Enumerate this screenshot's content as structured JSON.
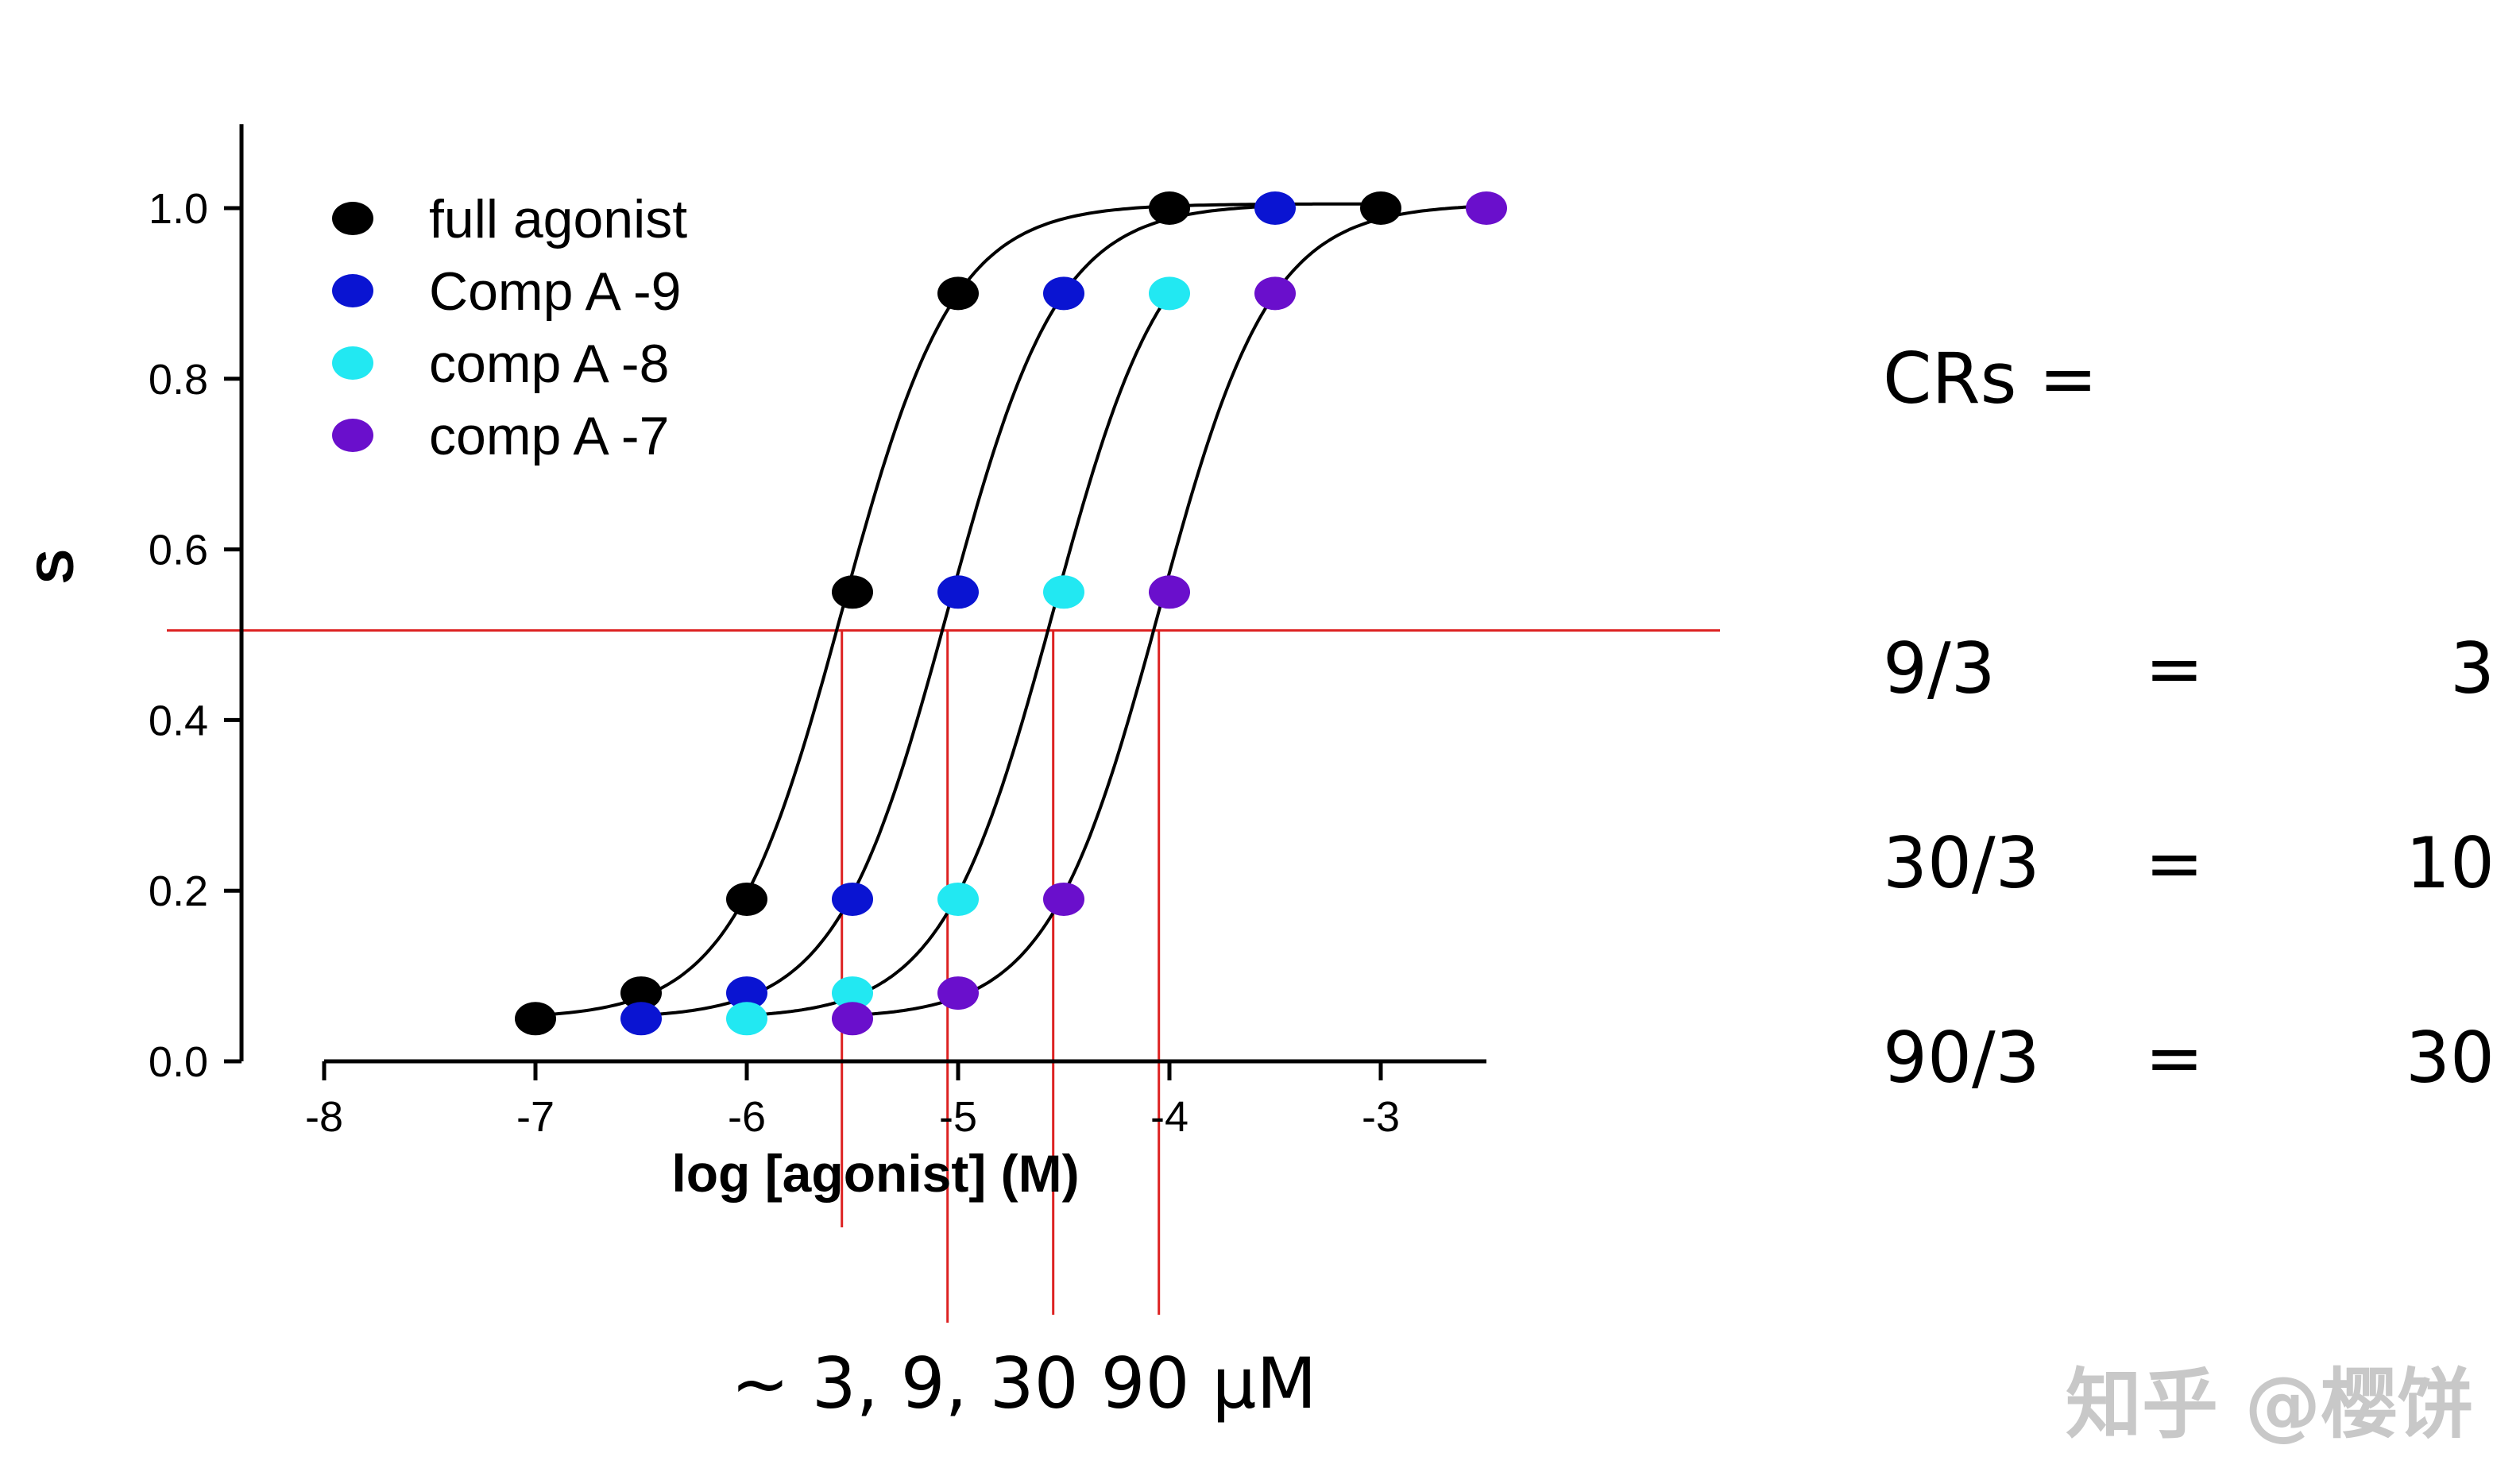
{
  "chart_data": {
    "type": "scatter",
    "title": "",
    "xlabel": "log [agonist] (M)",
    "ylabel": "S",
    "xlim": [
      -8,
      -2.5
    ],
    "ylim": [
      0,
      1.05
    ],
    "x_ticks": [
      -8,
      -7,
      -6,
      -5,
      -4,
      -3
    ],
    "y_ticks": [
      0.0,
      0.2,
      0.4,
      0.6,
      0.8,
      1.0
    ],
    "x_tick_labels": [
      "-8",
      "-7",
      "-6",
      "-5",
      "-4",
      "-3"
    ],
    "y_tick_labels": [
      "0.0",
      "0.2",
      "0.4",
      "0.6",
      "0.8",
      "1.0"
    ],
    "legend_position": "top-left",
    "reference_line_y": 0.505,
    "reference_x": [
      -5.55,
      -5.05,
      -4.55,
      -4.05
    ],
    "series": [
      {
        "name": "full   agonist",
        "color": "#000000",
        "ec50": -5.55,
        "x": [
          -7,
          -6.5,
          -6,
          -5.5,
          -5,
          -4,
          -3
        ],
        "y": [
          0.05,
          0.08,
          0.19,
          0.55,
          0.9,
          1.0,
          1.0
        ]
      },
      {
        "name": "Comp A -9",
        "color": "#0a14d2",
        "ec50": -5.05,
        "x": [
          -6.5,
          -6,
          -5.5,
          -5,
          -4.5,
          -3.5
        ],
        "y": [
          0.05,
          0.08,
          0.19,
          0.55,
          0.9,
          1.0
        ]
      },
      {
        "name": "comp A -8",
        "color": "#22e8f2",
        "ec50": -4.55,
        "x": [
          -6,
          -5.5,
          -5,
          -4.5,
          -4
        ],
        "y": [
          0.05,
          0.08,
          0.19,
          0.55,
          0.9
        ]
      },
      {
        "name": "comp A -7",
        "color": "#6a0fcc",
        "ec50": -4.05,
        "x": [
          -5.5,
          -5,
          -4.5,
          -4,
          -3.5,
          -2.5
        ],
        "y": [
          0.05,
          0.08,
          0.19,
          0.55,
          0.9,
          1.0
        ]
      }
    ],
    "reference_color": "#dd2222"
  },
  "crs": {
    "label": "CRs =",
    "rows": [
      {
        "ratio": "9/3",
        "eq": "=",
        "value": "3"
      },
      {
        "ratio": "30/3",
        "eq": "=",
        "value": "10"
      },
      {
        "ratio": "90/3",
        "eq": "=",
        "value": "30"
      }
    ]
  },
  "concentration_note": "~ 3,   9, 30 90  μM",
  "watermark": "知乎 @樱饼"
}
